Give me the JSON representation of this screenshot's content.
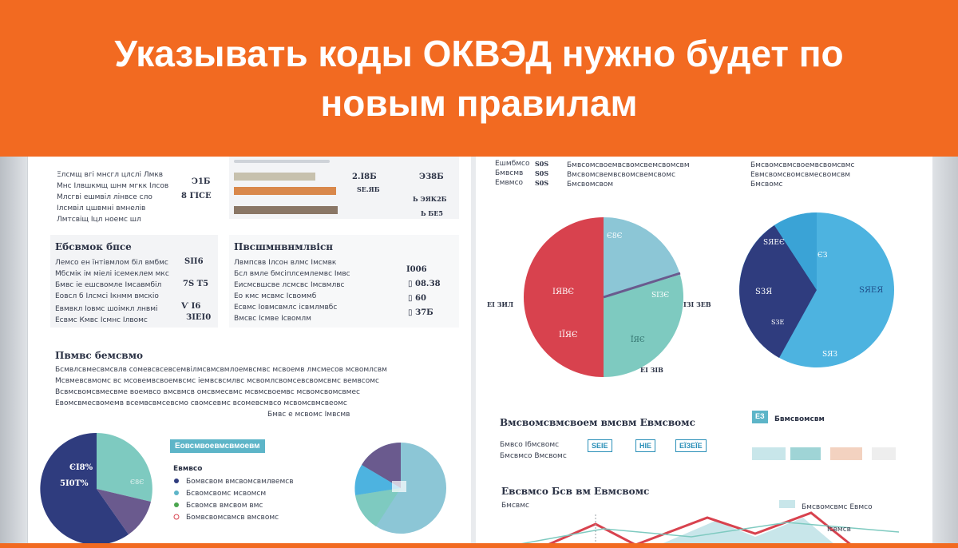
{
  "banner": {
    "title": "Указывать коды ОКВЭД нужно будет по новым правилам",
    "bg_color": "#f26a21",
    "text_color": "#ffffff"
  },
  "illustration": {
    "theme": "infographic-dashboard",
    "pie_colors": {
      "red": "#d8424e",
      "teal": "#7ecac0",
      "light_blue": "#8cc6d6",
      "navy": "#2f3c7e",
      "sky": "#4db3e0",
      "purple": "#6a5a8e"
    },
    "bar_colors": [
      "#c7c1ad",
      "#d9884b",
      "#8a7766"
    ]
  }
}
